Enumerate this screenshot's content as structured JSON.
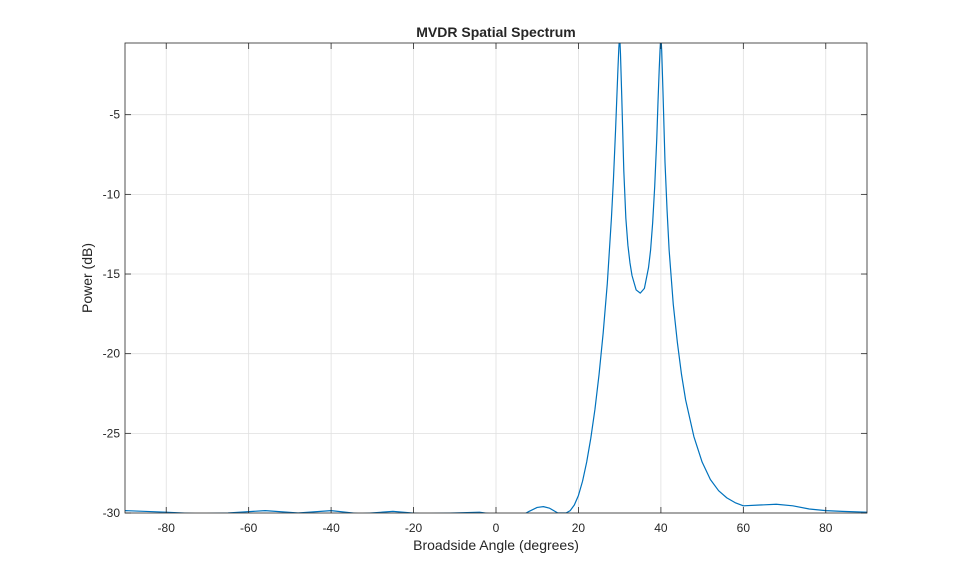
{
  "chart_data": {
    "type": "line",
    "title": "MVDR Spatial Spectrum",
    "xlabel": "Broadside Angle (degrees)",
    "ylabel": "Power (dB)",
    "xlim": [
      -90,
      90
    ],
    "ylim": [
      -30,
      0
    ],
    "xticks": [
      -80,
      -60,
      -40,
      -20,
      0,
      20,
      40,
      60,
      80
    ],
    "yticks": [
      -30,
      -25,
      -20,
      -15,
      -10,
      -5
    ],
    "grid": true,
    "line_color": "#0072BD",
    "series": [
      {
        "x": [
          -90,
          -80,
          -72,
          -65,
          -56,
          -48,
          -40,
          -33,
          -25,
          -18,
          -10,
          -4,
          0,
          2,
          4,
          6,
          8,
          10,
          11.5,
          13,
          15,
          17,
          18,
          19,
          20,
          21,
          22,
          23,
          24,
          25,
          26,
          27,
          28,
          28.5,
          29,
          29.3,
          29.6,
          29.8,
          30,
          30.2,
          30.5,
          31,
          31.5,
          32,
          32.5,
          33,
          34,
          35,
          36,
          37,
          37.5,
          38,
          38.5,
          39,
          39.3,
          39.6,
          39.8,
          40,
          40.2,
          40.5,
          41,
          41.5,
          42,
          43,
          44,
          45,
          46,
          48,
          50,
          52,
          54,
          56,
          58,
          60,
          64,
          68,
          72,
          76,
          80,
          84,
          90
        ],
        "y": [
          -29.85,
          -29.95,
          -30.05,
          -30.0,
          -29.85,
          -30.0,
          -29.85,
          -30.05,
          -29.9,
          -30.05,
          -30.0,
          -29.95,
          -30.1,
          -30.25,
          -30.3,
          -30.2,
          -29.9,
          -29.65,
          -29.6,
          -29.7,
          -30.0,
          -30.0,
          -29.85,
          -29.5,
          -28.9,
          -28.0,
          -26.8,
          -25.3,
          -23.5,
          -21.3,
          -18.7,
          -15.6,
          -11.5,
          -9.0,
          -6.0,
          -4.0,
          -2.0,
          -0.8,
          0.0,
          -1.2,
          -3.8,
          -8.5,
          -11.5,
          -13.2,
          -14.3,
          -15.1,
          -16.0,
          -16.2,
          -15.9,
          -14.6,
          -13.5,
          -11.8,
          -9.5,
          -6.5,
          -4.2,
          -2.1,
          -0.9,
          0.0,
          -1.0,
          -3.5,
          -8.0,
          -11.0,
          -13.5,
          -16.9,
          -19.3,
          -21.3,
          -22.9,
          -25.2,
          -26.8,
          -27.9,
          -28.6,
          -29.05,
          -29.35,
          -29.55,
          -29.5,
          -29.45,
          -29.55,
          -29.75,
          -29.85,
          -29.9,
          -29.95
        ]
      }
    ]
  }
}
